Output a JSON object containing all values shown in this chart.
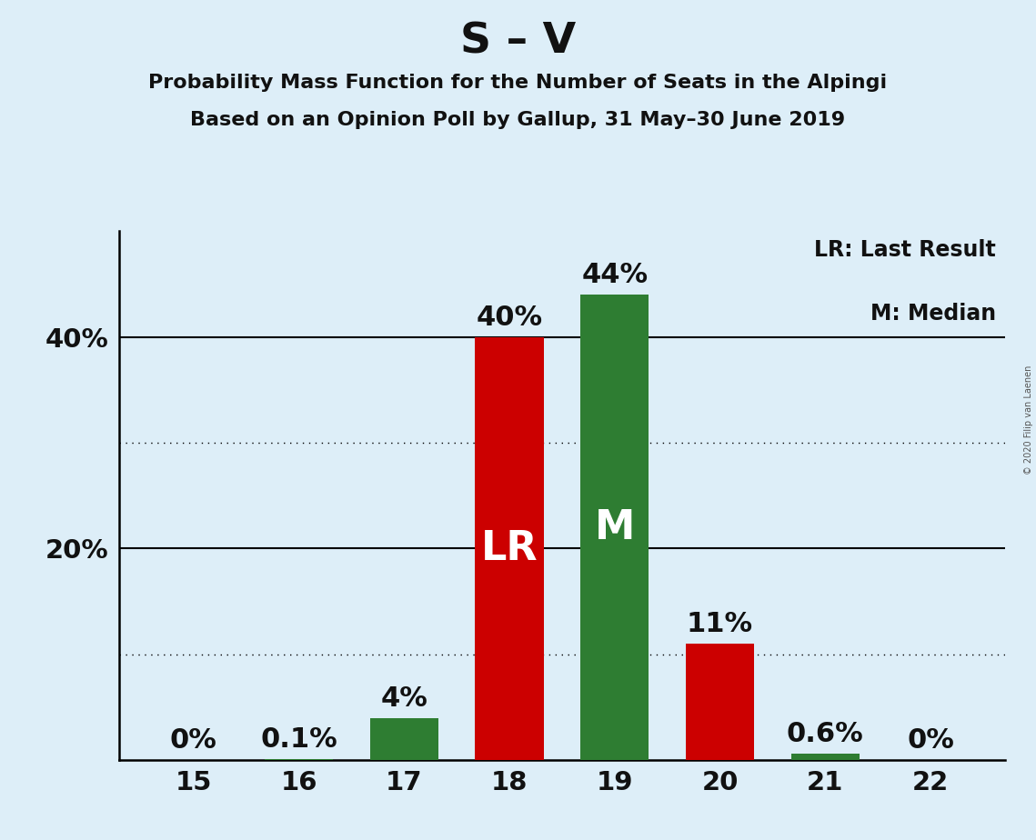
{
  "title": "S – V",
  "subtitle1": "Probability Mass Function for the Number of Seats in the Alpingi",
  "subtitle2": "Based on an Opinion Poll by Gallup, 31 May–30 June 2019",
  "copyright": "© 2020 Filip van Laenen",
  "legend_lr": "LR: Last Result",
  "legend_m": "M: Median",
  "seats": [
    15,
    16,
    17,
    18,
    19,
    20,
    21,
    22
  ],
  "values": [
    0.0,
    0.1,
    4.0,
    40.0,
    44.0,
    11.0,
    0.6,
    0.0
  ],
  "colors": [
    "#2e7d32",
    "#2e7d32",
    "#2e7d32",
    "#cc0000",
    "#2e7d32",
    "#cc0000",
    "#2e7d32",
    "#2e7d32"
  ],
  "labels": [
    "0%",
    "0.1%",
    "4%",
    "40%",
    "44%",
    "11%",
    "0.6%",
    "0%"
  ],
  "bar_labels": [
    "",
    "",
    "",
    "LR",
    "M",
    "",
    "",
    ""
  ],
  "ylim_max": 50,
  "yticks": [
    20,
    40
  ],
  "ytick_labels": [
    "20%",
    "40%"
  ],
  "background_color": "#ddeef8",
  "title_fontsize": 34,
  "subtitle_fontsize": 16,
  "tick_fontsize": 21,
  "label_fontsize": 22,
  "bar_label_fontsize": 32,
  "solid_gridlines": [
    20,
    40
  ],
  "dotted_gridlines": [
    10,
    30
  ]
}
